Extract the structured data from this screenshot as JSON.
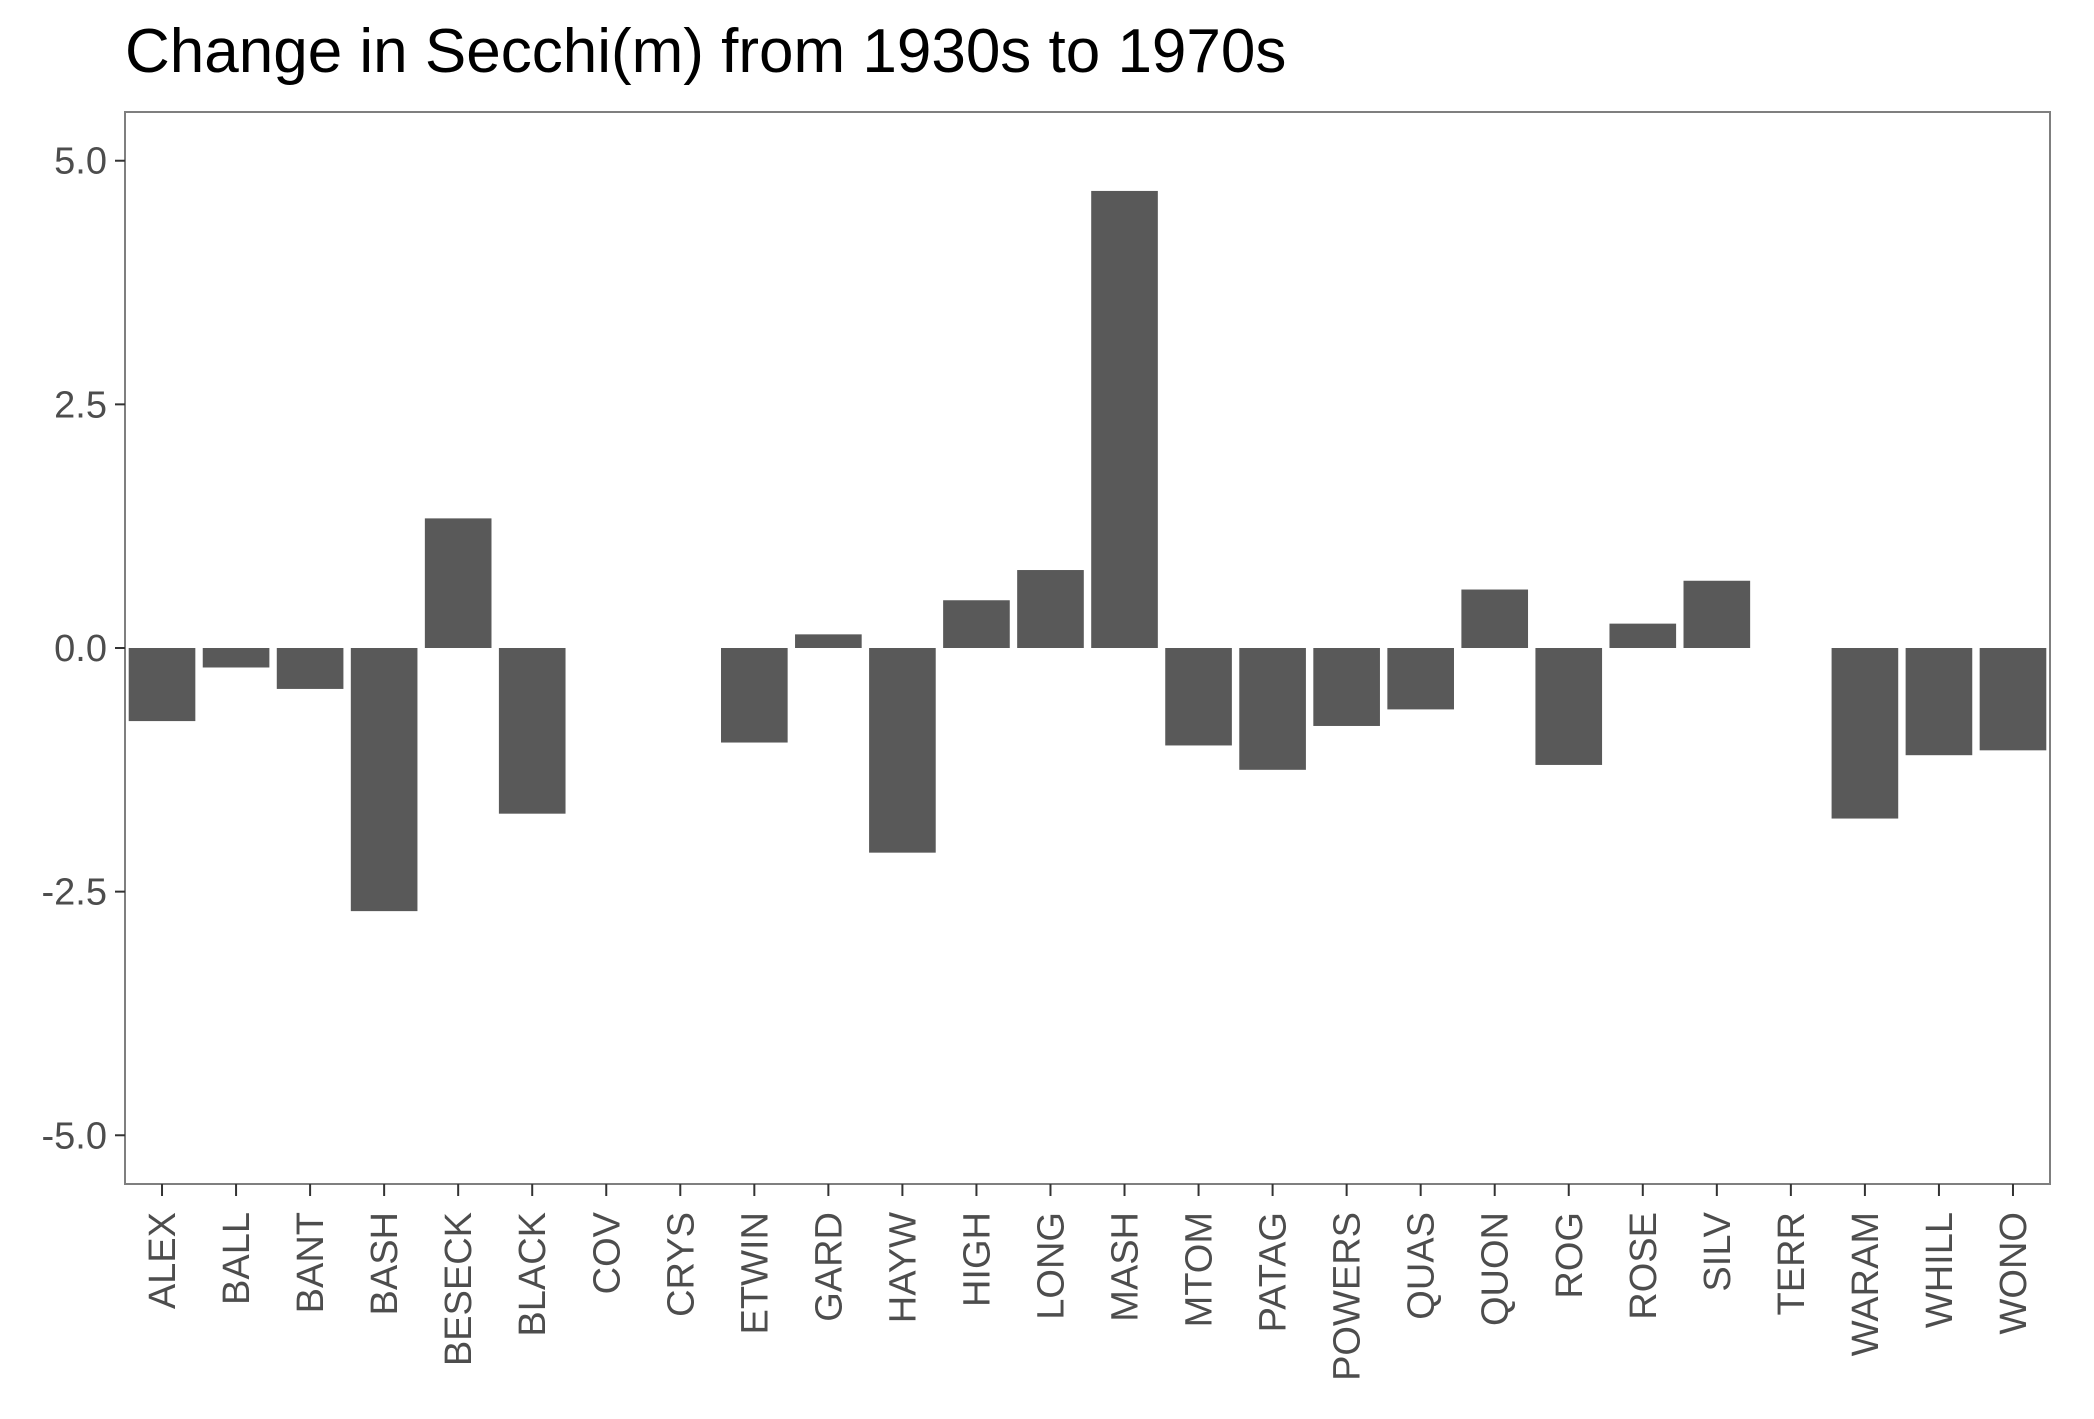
{
  "chart_data": {
    "type": "bar",
    "title": "Change in Secchi(m) from 1930s to 1970s",
    "xlabel": "",
    "ylabel": "",
    "ylim": [
      -5.5,
      5.5
    ],
    "yticks": [
      5.0,
      2.5,
      0.0,
      -2.5,
      -5.0
    ],
    "ytick_labels": [
      "5.0",
      "2.5",
      "0.0",
      "-2.5",
      "-5.0"
    ],
    "grid": false,
    "legend": "none",
    "bar_color": "#595959",
    "categories": [
      "ALEX",
      "BALL",
      "BANT",
      "BASH",
      "BESECK",
      "BLACK",
      "COV",
      "CRYS",
      "ETWIN",
      "GARD",
      "HAYW",
      "HIGH",
      "LONG",
      "MASH",
      "MTOM",
      "PATAG",
      "POWERS",
      "QUAS",
      "QUON",
      "ROG",
      "ROSE",
      "SILV",
      "TERR",
      "WARAM",
      "WHILL",
      "WONO"
    ],
    "values": [
      -0.75,
      -0.2,
      -0.42,
      -2.7,
      1.33,
      -1.7,
      null,
      null,
      -0.97,
      0.14,
      -2.1,
      0.49,
      0.8,
      4.69,
      -1.0,
      -1.25,
      -0.8,
      -0.63,
      0.6,
      -1.2,
      0.25,
      0.69,
      null,
      -1.75,
      -1.1,
      -1.05
    ]
  }
}
